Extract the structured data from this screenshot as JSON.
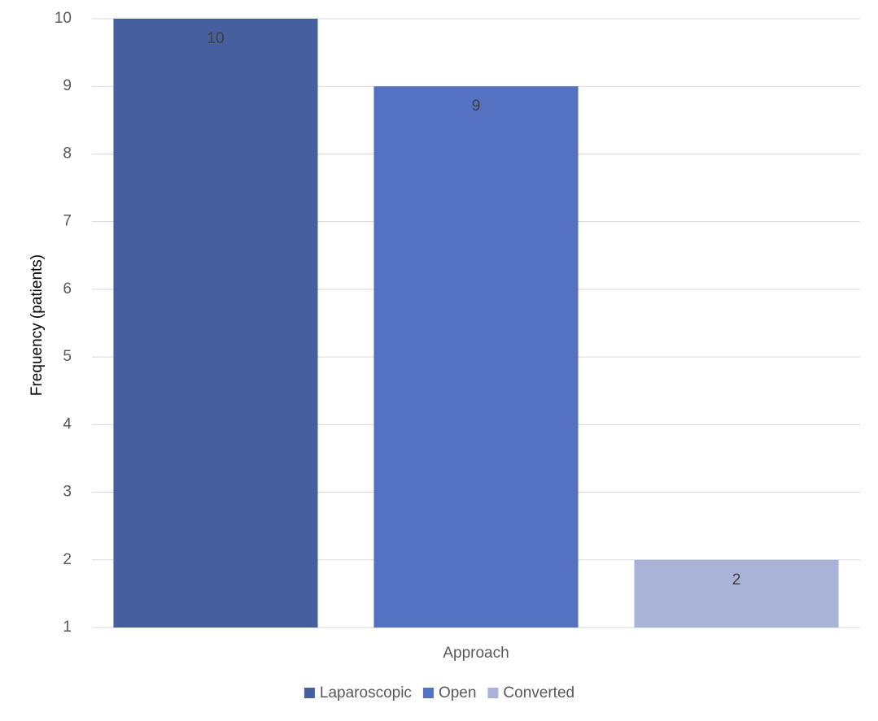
{
  "chart_data": {
    "type": "bar",
    "x_label": "Approach",
    "y_label": "Frequency  (patients)",
    "categories": [
      null
    ],
    "series": [
      {
        "name": "Laparoscopic",
        "color": "#465f9f",
        "values": [
          10
        ]
      },
      {
        "name": "Open",
        "color": "#5572c2",
        "values": [
          9
        ]
      },
      {
        "name": "Converted",
        "color": "#a9b3d8",
        "values": [
          2
        ]
      }
    ],
    "ylim": [
      1,
      10
    ],
    "yticks": [
      1,
      2,
      3,
      4,
      5,
      6,
      7,
      8,
      9,
      10
    ],
    "grid": true,
    "legend": "bottom"
  }
}
